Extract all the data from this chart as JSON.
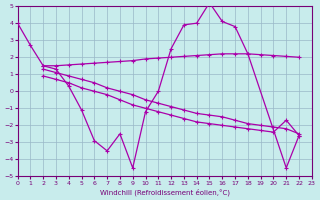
{
  "xlabel": "Windchill (Refroidissement éolien,°C)",
  "bg_color": "#c8ecec",
  "grid_color": "#9ab8c8",
  "line_color": "#aa00aa",
  "xlim": [
    0,
    23
  ],
  "ylim": [
    -5,
    5
  ],
  "yticks": [
    -5,
    -4,
    -3,
    -2,
    -1,
    0,
    1,
    2,
    3,
    4,
    5
  ],
  "xticks": [
    0,
    1,
    2,
    3,
    4,
    5,
    6,
    7,
    8,
    9,
    10,
    11,
    12,
    13,
    14,
    15,
    16,
    17,
    18,
    19,
    20,
    21,
    22,
    23
  ],
  "line1_x": [
    0,
    1,
    2,
    3,
    4,
    5,
    6,
    7,
    8,
    9,
    10,
    11,
    12,
    13,
    14,
    15,
    16,
    17,
    18,
    21,
    22
  ],
  "line1_y": [
    4.0,
    2.7,
    1.5,
    1.3,
    0.3,
    -1.1,
    -2.9,
    -3.5,
    -2.5,
    -4.5,
    -1.2,
    0.0,
    2.5,
    3.9,
    4.0,
    5.2,
    4.1,
    3.8,
    2.2,
    -4.5,
    -2.6
  ],
  "line2_x": [
    2,
    3,
    4,
    5,
    6,
    7,
    8,
    9,
    10,
    11,
    12,
    13,
    14,
    15,
    16,
    17,
    18,
    19,
    20,
    21,
    22
  ],
  "line2_y": [
    1.5,
    1.5,
    1.55,
    1.6,
    1.65,
    1.7,
    1.75,
    1.8,
    1.9,
    1.95,
    2.0,
    2.05,
    2.1,
    2.15,
    2.2,
    2.2,
    2.2,
    2.15,
    2.1,
    2.05,
    2.0
  ],
  "line3_x": [
    2,
    3,
    4,
    5,
    6,
    7,
    8,
    9,
    10,
    11,
    12,
    13,
    14,
    15,
    16,
    17,
    18,
    19,
    20,
    21,
    22
  ],
  "line3_y": [
    1.3,
    1.1,
    0.9,
    0.7,
    0.5,
    0.2,
    0.0,
    -0.2,
    -0.5,
    -0.7,
    -0.9,
    -1.1,
    -1.3,
    -1.4,
    -1.5,
    -1.7,
    -1.9,
    -2.0,
    -2.1,
    -2.2,
    -2.5
  ],
  "line4_x": [
    2,
    3,
    4,
    5,
    6,
    7,
    8,
    9,
    10,
    11,
    12,
    13,
    14,
    15,
    16,
    17,
    18,
    19,
    20,
    21,
    22
  ],
  "line4_y": [
    0.9,
    0.7,
    0.5,
    0.2,
    0.0,
    -0.2,
    -0.5,
    -0.8,
    -1.0,
    -1.2,
    -1.4,
    -1.6,
    -1.8,
    -1.9,
    -2.0,
    -2.1,
    -2.2,
    -2.3,
    -2.4,
    -1.7,
    -2.6
  ]
}
